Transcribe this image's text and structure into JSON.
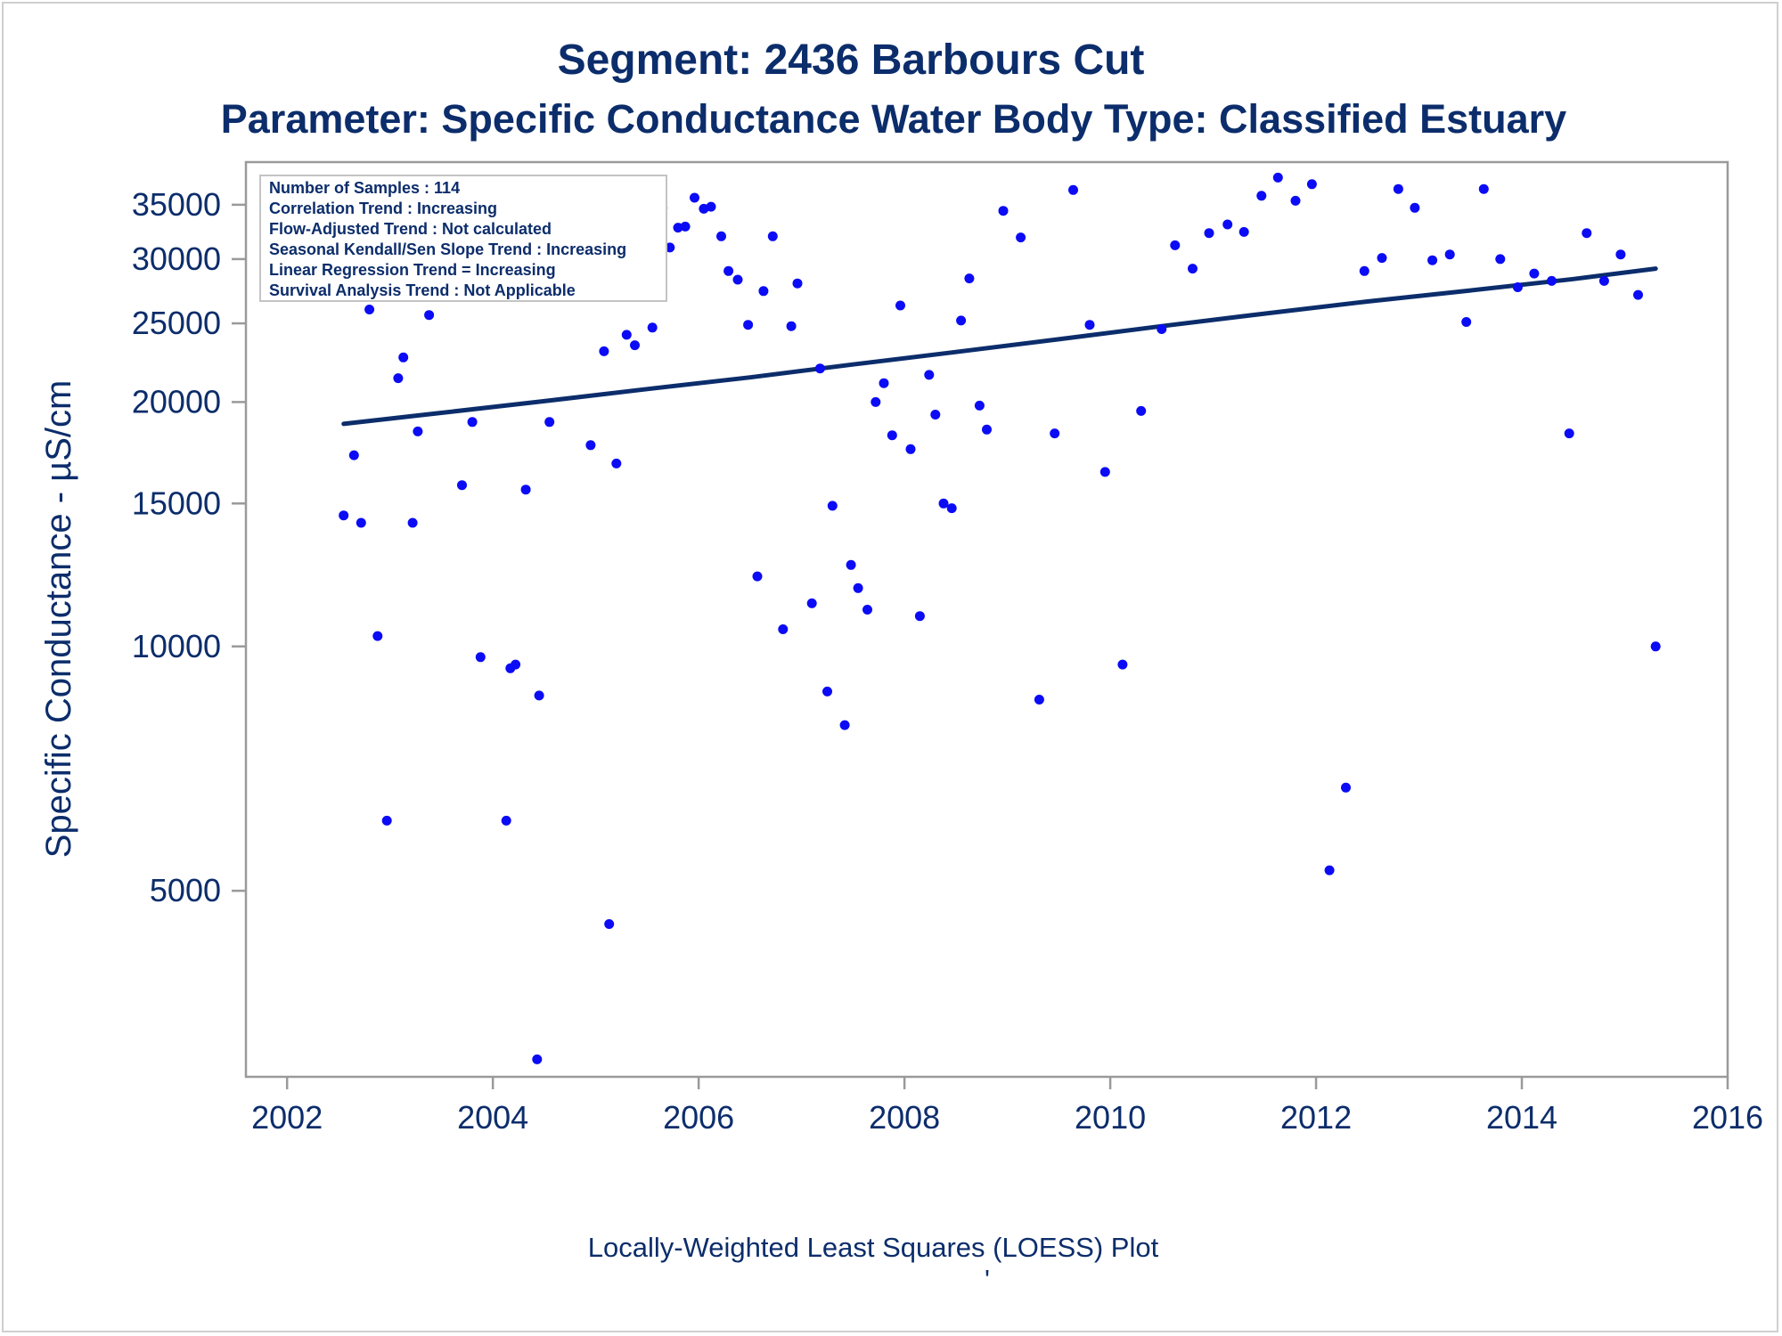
{
  "chart_data": {
    "type": "scatter",
    "title": "Segment: 2436  Barbours Cut",
    "subtitle": "Parameter: Specific Conductance   Water Body Type: Classified Estuary",
    "xlabel": "",
    "ylabel": "Specific Conductance -  µS/cm",
    "footnote": "Locally-Weighted Least Squares (LOESS) Plot",
    "footnote_mark": "'",
    "y_scale": "log",
    "xlim": [
      2001.6,
      2016.0
    ],
    "ylim": [
      2950,
      39500
    ],
    "x_ticks": [
      2002,
      2004,
      2006,
      2008,
      2010,
      2012,
      2014,
      2016
    ],
    "y_ticks": [
      5000,
      10000,
      15000,
      20000,
      25000,
      30000,
      35000
    ],
    "grid": false,
    "legend_position": "top-left",
    "point_color": "#0b0bf5",
    "line_color": "#0c2d6b",
    "stats": [
      "Number of Samples : 114",
      "Correlation Trend : Increasing",
      "Flow-Adjusted Trend : Not calculated",
      "Seasonal Kendall/Sen Slope Trend : Increasing",
      "Linear Regression Trend = Increasing",
      "Survival Analysis Trend : Not Applicable"
    ],
    "series": [
      {
        "type": "scatter",
        "points": [
          [
            2002.55,
            14500
          ],
          [
            2002.65,
            17200
          ],
          [
            2002.72,
            14200
          ],
          [
            2002.8,
            26000
          ],
          [
            2002.88,
            10300
          ],
          [
            2002.97,
            6100
          ],
          [
            2003.08,
            21400
          ],
          [
            2003.13,
            22700
          ],
          [
            2003.22,
            14200
          ],
          [
            2003.27,
            18400
          ],
          [
            2003.38,
            25600
          ],
          [
            2003.43,
            29100
          ],
          [
            2003.63,
            33000
          ],
          [
            2003.7,
            15800
          ],
          [
            2003.8,
            18900
          ],
          [
            2003.88,
            9700
          ],
          [
            2003.95,
            28400
          ],
          [
            2004.13,
            6100
          ],
          [
            2004.17,
            9400
          ],
          [
            2004.22,
            9500
          ],
          [
            2004.32,
            15600
          ],
          [
            2004.45,
            8700
          ],
          [
            2004.55,
            18900
          ],
          [
            2004.63,
            30100
          ],
          [
            2004.73,
            27600
          ],
          [
            2004.8,
            27400
          ],
          [
            2004.88,
            35600
          ],
          [
            2004.95,
            17700
          ],
          [
            2004.43,
            3100
          ],
          [
            2005.08,
            23100
          ],
          [
            2005.13,
            4550
          ],
          [
            2005.2,
            16800
          ],
          [
            2005.3,
            24200
          ],
          [
            2005.38,
            23500
          ],
          [
            2005.45,
            29700
          ],
          [
            2005.55,
            24700
          ],
          [
            2005.65,
            34700
          ],
          [
            2005.72,
            31000
          ],
          [
            2005.8,
            32800
          ],
          [
            2005.87,
            32900
          ],
          [
            2005.96,
            35700
          ],
          [
            2006.05,
            34600
          ],
          [
            2006.12,
            34800
          ],
          [
            2006.22,
            32000
          ],
          [
            2006.29,
            29000
          ],
          [
            2006.38,
            28300
          ],
          [
            2006.48,
            24900
          ],
          [
            2006.57,
            12200
          ],
          [
            2006.63,
            27400
          ],
          [
            2006.72,
            32000
          ],
          [
            2006.82,
            10500
          ],
          [
            2006.9,
            24800
          ],
          [
            2006.96,
            28000
          ],
          [
            2007.1,
            11300
          ],
          [
            2007.18,
            22000
          ],
          [
            2007.25,
            8800
          ],
          [
            2007.3,
            14900
          ],
          [
            2007.42,
            8000
          ],
          [
            2007.48,
            12600
          ],
          [
            2007.55,
            11800
          ],
          [
            2007.64,
            11100
          ],
          [
            2007.72,
            20000
          ],
          [
            2007.8,
            21100
          ],
          [
            2007.88,
            18200
          ],
          [
            2007.96,
            26300
          ],
          [
            2008.06,
            17500
          ],
          [
            2008.15,
            10900
          ],
          [
            2008.24,
            21600
          ],
          [
            2008.3,
            19300
          ],
          [
            2008.38,
            15000
          ],
          [
            2008.46,
            14800
          ],
          [
            2008.55,
            25200
          ],
          [
            2008.63,
            28400
          ],
          [
            2008.73,
            19800
          ],
          [
            2008.8,
            18500
          ],
          [
            2008.96,
            34400
          ],
          [
            2009.13,
            31900
          ],
          [
            2009.31,
            8600
          ],
          [
            2009.46,
            18300
          ],
          [
            2009.64,
            36500
          ],
          [
            2009.8,
            24900
          ],
          [
            2009.95,
            16400
          ],
          [
            2010.12,
            9500
          ],
          [
            2010.3,
            19500
          ],
          [
            2010.5,
            24600
          ],
          [
            2010.63,
            31200
          ],
          [
            2010.8,
            29200
          ],
          [
            2010.96,
            32300
          ],
          [
            2011.14,
            33100
          ],
          [
            2011.3,
            32400
          ],
          [
            2011.47,
            35900
          ],
          [
            2011.63,
            37800
          ],
          [
            2011.8,
            35400
          ],
          [
            2011.96,
            37100
          ],
          [
            2012.13,
            5300
          ],
          [
            2012.29,
            6700
          ],
          [
            2012.47,
            29000
          ],
          [
            2012.64,
            30100
          ],
          [
            2012.8,
            36600
          ],
          [
            2012.96,
            34700
          ],
          [
            2013.13,
            29900
          ],
          [
            2013.3,
            30400
          ],
          [
            2013.46,
            25100
          ],
          [
            2013.63,
            36600
          ],
          [
            2013.79,
            30000
          ],
          [
            2013.96,
            27700
          ],
          [
            2014.12,
            28800
          ],
          [
            2014.29,
            28200
          ],
          [
            2014.46,
            18300
          ],
          [
            2014.63,
            32300
          ],
          [
            2014.8,
            28200
          ],
          [
            2014.96,
            30400
          ],
          [
            2015.13,
            27100
          ],
          [
            2015.3,
            10000
          ]
        ]
      },
      {
        "type": "line",
        "points": [
          [
            2002.55,
            18800
          ],
          [
            2003.5,
            19400
          ],
          [
            2004.5,
            20050
          ],
          [
            2005.5,
            20750
          ],
          [
            2006.5,
            21450
          ],
          [
            2007.5,
            22250
          ],
          [
            2008.5,
            23050
          ],
          [
            2009.5,
            23900
          ],
          [
            2010.5,
            24800
          ],
          [
            2011.5,
            25700
          ],
          [
            2012.5,
            26600
          ],
          [
            2013.5,
            27450
          ],
          [
            2014.5,
            28350
          ],
          [
            2015.3,
            29200
          ]
        ]
      }
    ]
  }
}
